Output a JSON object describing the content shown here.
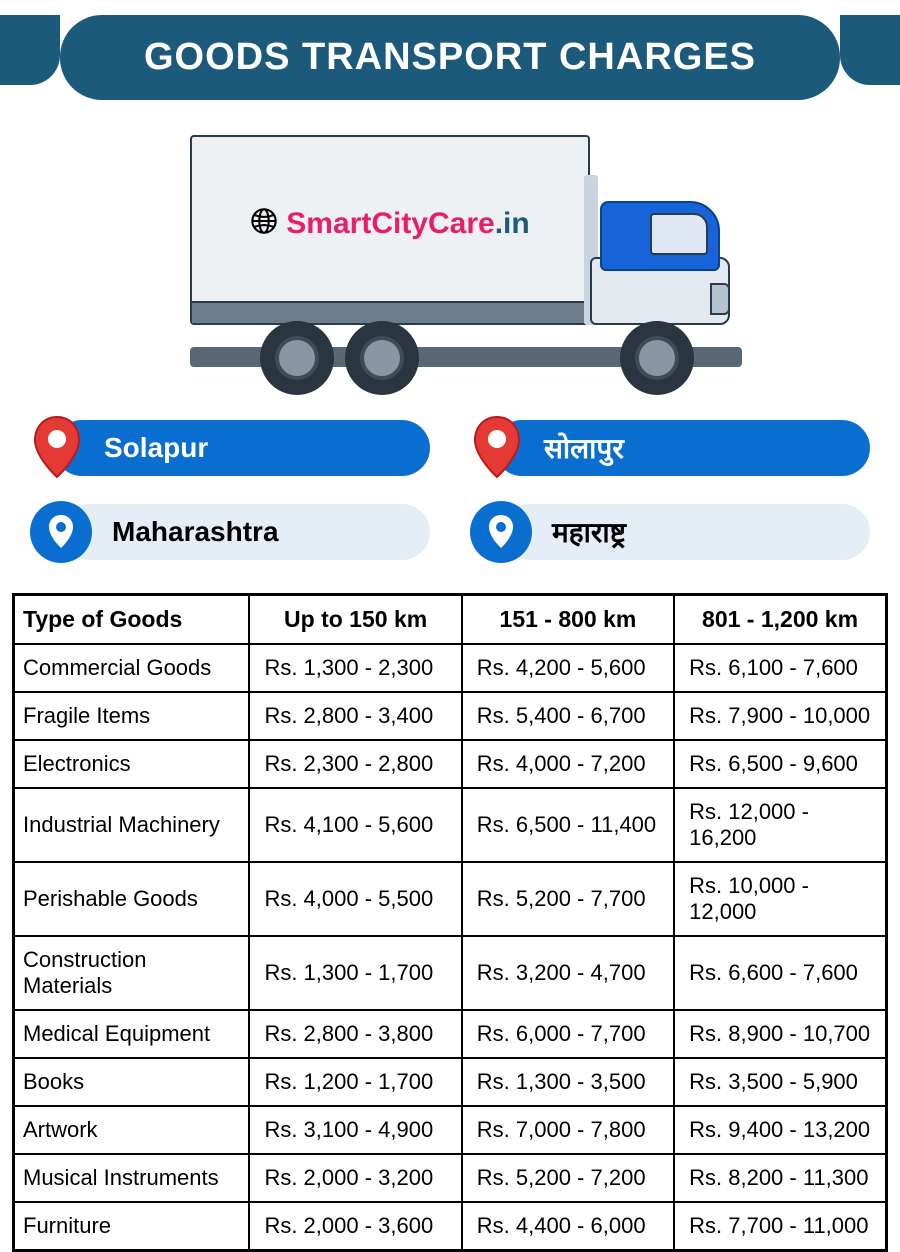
{
  "header": {
    "title": "GOODS TRANSPORT CHARGES"
  },
  "brand": {
    "name": "SmartCityCare",
    "tld": ".in"
  },
  "locations": {
    "city_en": "Solapur",
    "city_hi": "सोलापुर",
    "state_en": "Maharashtra",
    "state_hi": "महाराष्ट्र"
  },
  "colors": {
    "header_bg": "#1b5a7a",
    "pill_blue": "#0a6ed1",
    "pill_light": "#e5eef6",
    "pin_red": "#e53935",
    "brand_pink": "#e91e63"
  },
  "table": {
    "columns": [
      "Type of Goods",
      "Up to 150 km",
      "151 - 800 km",
      "801 - 1,200 km"
    ],
    "rows": [
      [
        "Commercial Goods",
        "Rs. 1,300 - 2,300",
        "Rs. 4,200 - 5,600",
        "Rs. 6,100 - 7,600"
      ],
      [
        "Fragile Items",
        "Rs. 2,800 - 3,400",
        "Rs. 5,400 - 6,700",
        "Rs. 7,900 - 10,000"
      ],
      [
        "Electronics",
        "Rs. 2,300 - 2,800",
        "Rs. 4,000 - 7,200",
        "Rs. 6,500 - 9,600"
      ],
      [
        "Industrial Machinery",
        "Rs. 4,100 - 5,600",
        "Rs. 6,500 - 11,400",
        "Rs. 12,000 - 16,200"
      ],
      [
        "Perishable Goods",
        "Rs. 4,000 - 5,500",
        "Rs. 5,200 - 7,700",
        "Rs. 10,000 - 12,000"
      ],
      [
        "Construction Materials",
        "Rs. 1,300 - 1,700",
        "Rs. 3,200 - 4,700",
        "Rs. 6,600 - 7,600"
      ],
      [
        "Medical Equipment",
        "Rs. 2,800 - 3,800",
        "Rs. 6,000 - 7,700",
        "Rs. 8,900 - 10,700"
      ],
      [
        "Books",
        "Rs. 1,200 - 1,700",
        "Rs. 1,300 - 3,500",
        "Rs. 3,500 - 5,900"
      ],
      [
        "Artwork",
        "Rs. 3,100 - 4,900",
        "Rs. 7,000 - 7,800",
        "Rs. 9,400 - 13,200"
      ],
      [
        "Musical Instruments",
        "Rs. 2,000 - 3,200",
        "Rs. 5,200 - 7,200",
        "Rs. 8,200 - 11,300"
      ],
      [
        "Furniture",
        "Rs. 2,000 - 3,600",
        "Rs. 4,400 - 6,000",
        "Rs. 7,700 - 11,000"
      ]
    ]
  }
}
